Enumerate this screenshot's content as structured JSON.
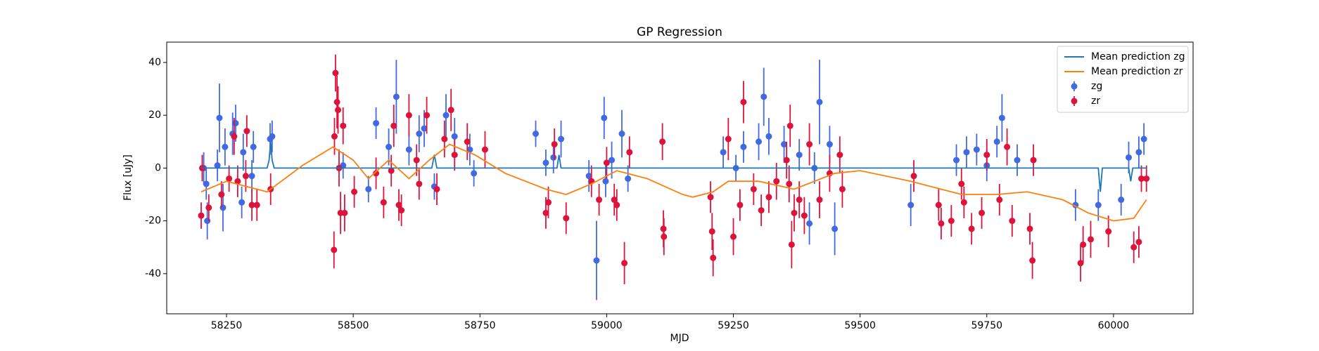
{
  "chart_data": {
    "type": "errorbar",
    "title": "GP Regression",
    "x_label": "MJD",
    "y_label": "Flux [uJy]",
    "xlim": [
      58132,
      60157
    ],
    "ylim": [
      -55.2,
      47.7
    ],
    "xticks": [
      58250,
      58500,
      58750,
      59000,
      59250,
      59500,
      59750,
      60000
    ],
    "yticks": [
      -40,
      -20,
      0,
      20,
      40
    ],
    "legend": "upper right",
    "series": [
      {
        "name": "Mean prediction zg",
        "type": "line",
        "color": "#1f77b4",
        "x": [
          58200,
          58330,
          58334,
          58337,
          58340,
          58344,
          58655,
          58660,
          58665,
          58902,
          58906,
          58910,
          59970,
          59974,
          59978,
          60030,
          60034,
          60038,
          60065
        ],
        "values": [
          0,
          0,
          3,
          10,
          3,
          0,
          0,
          5,
          0,
          0,
          5,
          0,
          0,
          -9,
          0,
          0,
          -5,
          0,
          0
        ]
      },
      {
        "name": "Mean prediction zr",
        "type": "line",
        "color": "#ff7f0e",
        "x": [
          58200,
          58250,
          58290,
          58330,
          58400,
          58460,
          58500,
          58530,
          58570,
          58610,
          58650,
          58690,
          58740,
          58800,
          58880,
          58920,
          58970,
          59020,
          59080,
          59150,
          59170,
          59210,
          59240,
          59300,
          59370,
          59450,
          59500,
          59600,
          59700,
          59770,
          59830,
          59900,
          59950,
          60000,
          60040,
          60065
        ],
        "values": [
          -9,
          -5,
          -7,
          -9,
          1,
          8,
          3,
          -4,
          3,
          -4,
          3,
          9,
          5,
          -2,
          -8,
          -10,
          -6,
          -1,
          -4,
          -10,
          -11,
          -9,
          -5,
          -5,
          -8,
          -2,
          -1,
          -5,
          -10,
          -10,
          -9,
          -12,
          -17,
          -20,
          -19,
          -12
        ]
      },
      {
        "name": "zg",
        "type": "errorbar",
        "color": "#4169e1",
        "x": [
          58205,
          58210,
          58212,
          58232,
          58236,
          58243,
          58247,
          58262,
          58268,
          58280,
          58283,
          58300,
          58303,
          58336,
          58340,
          58480,
          58530,
          58545,
          58570,
          58585,
          58610,
          58630,
          58640,
          58660,
          58683,
          58700,
          58730,
          58738,
          58860,
          58880,
          58895,
          58910,
          58965,
          58980,
          58995,
          58998,
          59010,
          59030,
          59042,
          59230,
          59255,
          59270,
          59300,
          59310,
          59320,
          59350,
          59380,
          59400,
          59410,
          59420,
          59440,
          59450,
          59600,
          59690,
          59710,
          59730,
          59750,
          59770,
          59780,
          59810,
          59925,
          59970,
          60015,
          60030,
          60050,
          60060
        ],
        "values": [
          0,
          -6,
          -20,
          1,
          19,
          -15,
          8,
          13,
          17,
          -13,
          6,
          -3,
          8,
          11,
          12,
          1,
          -8,
          17,
          8,
          27,
          7,
          13,
          15,
          -7,
          20,
          12,
          7,
          -2,
          13,
          2,
          4,
          11,
          -3,
          -35,
          19,
          -5,
          3,
          13,
          -4,
          6,
          0,
          8,
          10,
          27,
          12,
          9,
          5,
          -21,
          0,
          25,
          9,
          -23,
          -14,
          3,
          6,
          7,
          1,
          10,
          19,
          3,
          -14,
          -14,
          -12,
          4,
          6,
          11
        ],
        "errors": [
          6,
          6,
          7,
          6,
          13,
          9,
          7,
          8,
          7,
          6,
          7,
          6,
          6,
          6,
          6,
          5,
          5,
          6,
          7,
          14,
          6,
          7,
          7,
          5,
          8,
          7,
          6,
          5,
          5,
          5,
          6,
          7,
          6,
          15,
          8,
          6,
          7,
          9,
          5,
          6,
          5,
          6,
          7,
          11,
          7,
          7,
          6,
          8,
          6,
          16,
          7,
          10,
          8,
          6,
          6,
          6,
          6,
          6,
          9,
          6,
          6,
          6,
          6,
          6,
          6,
          6
        ]
      },
      {
        "name": "zr",
        "type": "errorbar",
        "color": "#dc143c",
        "x": [
          58200,
          58202,
          58215,
          58240,
          58255,
          58265,
          58272,
          58288,
          58290,
          58300,
          58310,
          58337,
          58462,
          58463,
          58465,
          58468,
          58470,
          58472,
          58475,
          58480,
          58483,
          58502,
          58545,
          58560,
          58575,
          58580,
          58590,
          58595,
          58610,
          58625,
          58630,
          58645,
          58665,
          58680,
          58693,
          58700,
          58725,
          58760,
          58880,
          58885,
          58897,
          58920,
          58970,
          58985,
          59000,
          59015,
          59020,
          59035,
          59045,
          59110,
          59112,
          59113,
          59205,
          59208,
          59210,
          59240,
          59250,
          59263,
          59270,
          59290,
          59305,
          59320,
          59335,
          59355,
          59360,
          59362,
          59365,
          59370,
          59380,
          59390,
          59400,
          59420,
          59440,
          59460,
          59465,
          59606,
          59655,
          59660,
          59680,
          59700,
          59705,
          59720,
          59740,
          59750,
          59775,
          59790,
          59800,
          59835,
          59840,
          59842,
          59935,
          59940,
          59955,
          59990,
          60040,
          60050,
          60055,
          60065
        ],
        "values": [
          -18,
          0,
          -15,
          -10,
          -4,
          12,
          -5,
          -3,
          14,
          -14,
          -14,
          -8,
          -31,
          12,
          36,
          25,
          22,
          0,
          -17,
          16,
          -17,
          -9,
          -2,
          -13,
          -1,
          16,
          -14,
          -16,
          20,
          3,
          -6,
          20,
          -8,
          11,
          22,
          5,
          10,
          7,
          -17,
          -13,
          9,
          -19,
          -5,
          -12,
          2,
          -12,
          -14,
          -36,
          6,
          10,
          -23,
          -26,
          -11,
          -24,
          -34,
          11,
          -26,
          -14,
          25,
          -8,
          -16,
          -11,
          -5,
          3,
          -6,
          16,
          -29,
          -17,
          -12,
          -18,
          9,
          -12,
          -2,
          5,
          -8,
          -3,
          -14,
          -21,
          -20,
          -6,
          -13,
          -23,
          -17,
          5,
          -12,
          8,
          -20,
          -23,
          -35,
          3,
          -36,
          -29,
          -27,
          -24,
          -30,
          -28,
          -4,
          -4
        ],
        "errors": [
          5,
          5,
          5,
          5,
          5,
          7,
          6,
          6,
          6,
          6,
          6,
          6,
          7,
          7,
          7,
          10,
          9,
          7,
          8,
          7,
          7,
          6,
          6,
          6,
          6,
          8,
          6,
          6,
          8,
          6,
          6,
          7,
          6,
          7,
          8,
          6,
          7,
          7,
          6,
          6,
          6,
          6,
          6,
          6,
          6,
          6,
          6,
          8,
          6,
          7,
          7,
          7,
          6,
          7,
          7,
          8,
          7,
          6,
          8,
          6,
          6,
          6,
          7,
          7,
          7,
          8,
          9,
          7,
          7,
          7,
          8,
          7,
          7,
          7,
          7,
          6,
          6,
          6,
          6,
          6,
          6,
          6,
          6,
          6,
          6,
          7,
          6,
          6,
          7,
          6,
          7,
          7,
          7,
          6,
          6,
          6,
          5,
          5
        ]
      }
    ]
  }
}
